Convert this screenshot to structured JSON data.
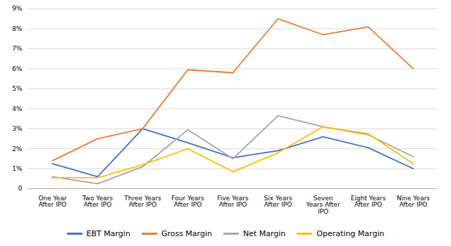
{
  "chart_data": {
    "type": "line",
    "categories": [
      "One Year\nAfter IPO",
      "Two Years\nAfter IPO",
      "Three Years\nAfter IPO",
      "Four Years\nAfter IPO",
      "Five Years\nAfter IPO",
      "Six Years\nAfter IPO",
      "Seven\nYears After\nIPO",
      "Eight Years\nAfter IPO",
      "Nine Years\nAfter IPO"
    ],
    "series": [
      {
        "name": "EBT Margin",
        "color": "#4472C4",
        "values": [
          1.25,
          0.6,
          3.0,
          2.3,
          1.55,
          1.9,
          2.6,
          2.05,
          1.0
        ]
      },
      {
        "name": "Gross Margin",
        "color": "#ED7D31",
        "values": [
          1.4,
          2.5,
          3.0,
          5.95,
          5.8,
          8.5,
          7.7,
          8.1,
          6.0
        ]
      },
      {
        "name": "Net Margin",
        "color": "#A5A5A5",
        "values": [
          0.6,
          0.25,
          1.1,
          2.95,
          1.5,
          3.65,
          3.1,
          2.7,
          1.6
        ]
      },
      {
        "name": "Operating Margin",
        "color": "#FFC000",
        "values": [
          0.55,
          0.55,
          1.2,
          2.0,
          0.85,
          1.8,
          3.1,
          2.75,
          1.25
        ]
      }
    ],
    "ylim": [
      0,
      9
    ],
    "yticks": [
      0,
      {
        "value": 1,
        "label": "1%"
      },
      {
        "value": 2,
        "label": "2%"
      },
      {
        "value": 3,
        "label": "3%"
      },
      {
        "value": 4,
        "label": "4%"
      },
      {
        "value": 5,
        "label": "5%"
      },
      {
        "value": 6,
        "label": "6%"
      },
      {
        "value": 7,
        "label": "7%"
      },
      {
        "value": 8,
        "label": "8%"
      },
      {
        "value": 9,
        "label": "9%"
      }
    ],
    "grid": true,
    "legend": "bottom"
  }
}
